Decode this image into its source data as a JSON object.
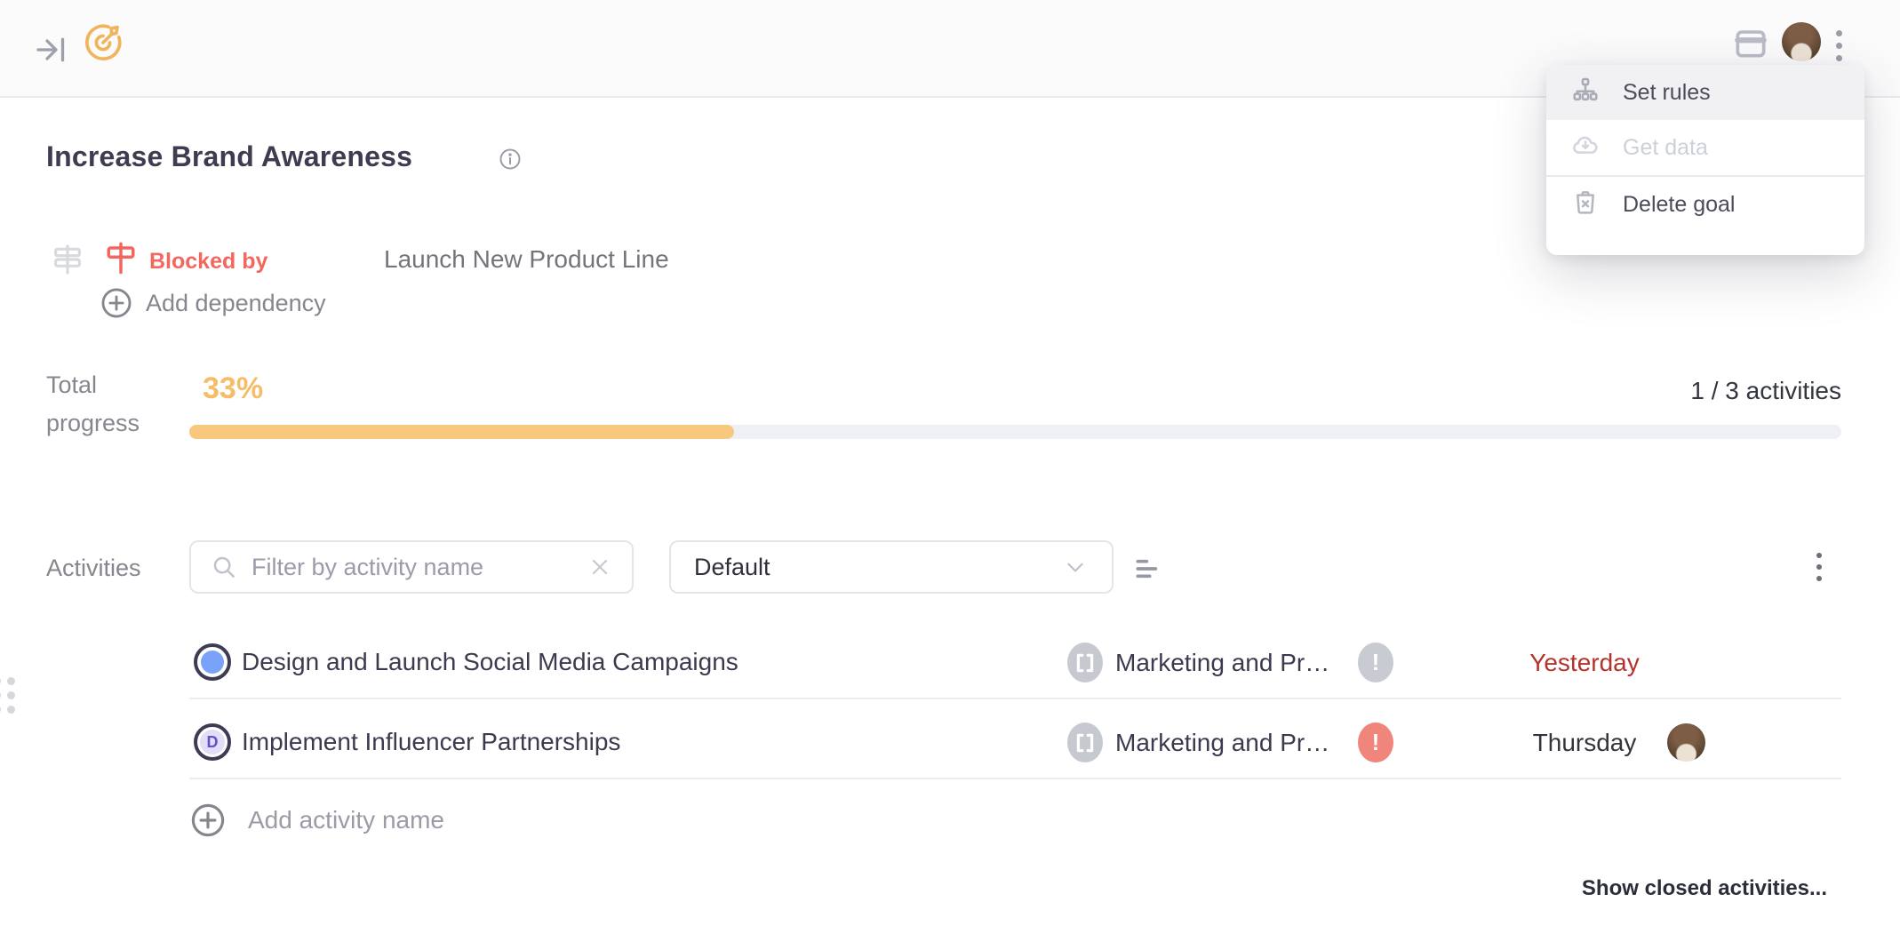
{
  "header": {
    "collapse_icon": "arrow-right-to-bar",
    "goal_icon": "target",
    "calendar_icon": "calendar",
    "more_icon": "kebab-menu"
  },
  "context_menu": {
    "items": [
      {
        "label": "Set rules",
        "icon": "sitemap-icon",
        "state": "hover"
      },
      {
        "label": "Get data",
        "icon": "cloud-download-icon",
        "state": "disabled"
      },
      {
        "label": "Delete goal",
        "icon": "trash-icon",
        "state": "normal"
      }
    ]
  },
  "goal": {
    "title": "Increase Brand Awareness"
  },
  "dependency": {
    "blocked_by_label": "Blocked by",
    "blocked_by_target": "Launch New Product Line",
    "add_label": "Add dependency"
  },
  "progress": {
    "label": "Total progress",
    "percent": 33,
    "percent_label": "33%",
    "activities_count": "1 / 3 activities"
  },
  "activities": {
    "section_label": "Activities",
    "filter_placeholder": "Filter by activity name",
    "sort_selected": "Default",
    "add_label": "Add activity name",
    "show_closed_label": "Show closed activities...",
    "rows": [
      {
        "title": "Design and Launch Social Media Campaigns",
        "status": "open",
        "project": "Marketing and Pr…",
        "alert": "muted",
        "due": "Yesterday",
        "overdue": true
      },
      {
        "title": "Implement Influencer Partnerships",
        "status": "draft",
        "status_letter": "D",
        "project": "Marketing and Pr…",
        "alert": "urgent",
        "due": "Thursday",
        "overdue": false
      }
    ]
  },
  "colors": {
    "accent_orange": "#f0b45c",
    "progress_fill": "#f8c87e",
    "progress_track": "#eef0f5",
    "blocked_red": "#f2685f",
    "overdue_red": "#b5322d",
    "urgent_badge": "#f0857b",
    "muted_badge": "#c9cbd3",
    "open_blue": "#79a2f8",
    "draft_purple": "#6052c8",
    "dark_text": "#3b3a4e",
    "gray_text": "#85868e"
  }
}
